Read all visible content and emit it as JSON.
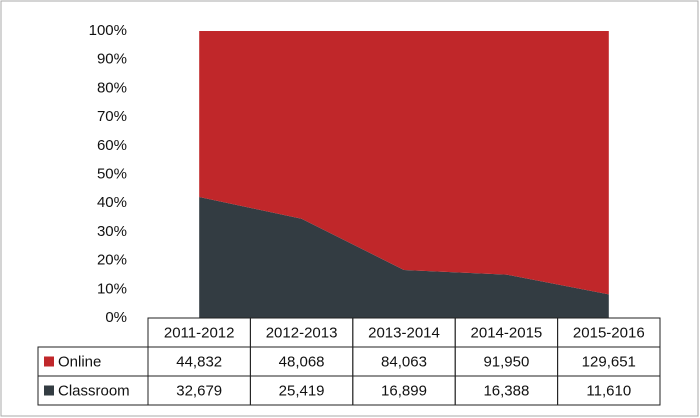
{
  "chart_data": {
    "type": "area",
    "stacking": "percent",
    "categories": [
      "2011-2012",
      "2012-2013",
      "2013-2014",
      "2014-2015",
      "2015-2016"
    ],
    "series": [
      {
        "name": "Online",
        "color": "#c0272a",
        "values": [
          44832,
          48068,
          84063,
          91950,
          129651
        ],
        "value_labels": [
          "44,832",
          "48,068",
          "84,063",
          "91,950",
          "129,651"
        ]
      },
      {
        "name": "Classroom",
        "color": "#333c42",
        "values": [
          32679,
          25419,
          16899,
          16388,
          11610
        ],
        "value_labels": [
          "32,679",
          "25,419",
          "16,899",
          "16,388",
          "11,610"
        ]
      }
    ],
    "ylim": [
      0,
      100
    ],
    "yticks": [
      {
        "value": 0,
        "label": "0%"
      },
      {
        "value": 10,
        "label": "10%"
      },
      {
        "value": 20,
        "label": "20%"
      },
      {
        "value": 30,
        "label": "30%"
      },
      {
        "value": 40,
        "label": "40%"
      },
      {
        "value": 50,
        "label": "50%"
      },
      {
        "value": 60,
        "label": "60%"
      },
      {
        "value": 70,
        "label": "70%"
      },
      {
        "value": 80,
        "label": "80%"
      },
      {
        "value": 90,
        "label": "90%"
      },
      {
        "value": 100,
        "label": "100%"
      }
    ],
    "grid": false
  }
}
